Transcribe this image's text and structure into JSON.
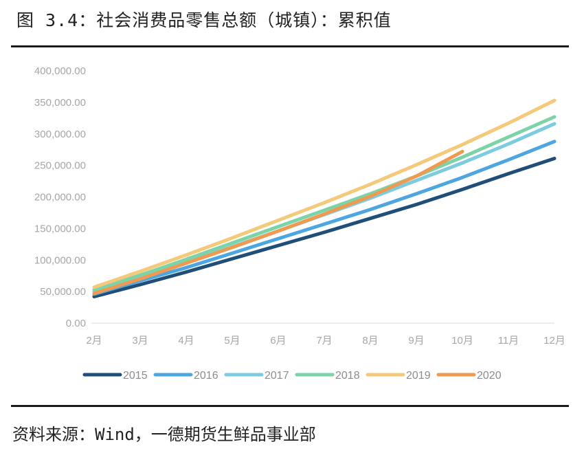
{
  "header": {
    "title": "图 3.4：社会消费品零售总额（城镇）：累积值"
  },
  "footer": {
    "source": "资料来源：Wind，一德期货生鲜品事业部"
  },
  "chart_data": {
    "type": "line",
    "title": "",
    "xlabel": "",
    "ylabel": "",
    "categories": [
      "2月",
      "3月",
      "4月",
      "5月",
      "6月",
      "7月",
      "8月",
      "9月",
      "10月",
      "11月",
      "12月"
    ],
    "ylim": [
      0,
      400000
    ],
    "y_ticks": [
      "0.00",
      "50,000.00",
      "100,000.00",
      "150,000.00",
      "200,000.00",
      "250,000.00",
      "300,000.00",
      "350,000.00",
      "400,000.00"
    ],
    "legend_position": "bottom",
    "grid": false,
    "series": [
      {
        "name": "2015",
        "color": "#1f4e79",
        "values": [
          42000,
          61000,
          81000,
          102000,
          123000,
          144000,
          166000,
          188000,
          212000,
          237000,
          261000
        ]
      },
      {
        "name": "2016",
        "color": "#4da6e0",
        "values": [
          46000,
          67000,
          88000,
          111000,
          134000,
          157000,
          180000,
          205000,
          231000,
          259000,
          288000
        ]
      },
      {
        "name": "2017",
        "color": "#7dcbe0",
        "values": [
          50000,
          72000,
          96000,
          121000,
          146000,
          172000,
          198000,
          226000,
          254000,
          284000,
          316000
        ]
      },
      {
        "name": "2018",
        "color": "#7dd3a8",
        "values": [
          53000,
          76000,
          101000,
          127000,
          153000,
          179000,
          205000,
          233000,
          263000,
          295000,
          327000
        ]
      },
      {
        "name": "2019",
        "color": "#f5c97a",
        "values": [
          57000,
          82000,
          108000,
          135000,
          163000,
          191000,
          220000,
          251000,
          283000,
          317000,
          353000
        ]
      },
      {
        "name": "2020",
        "color": "#ee9a50",
        "values": [
          47000,
          70000,
          95000,
          120000,
          146000,
          173000,
          201000,
          233000,
          272000,
          null,
          null
        ]
      }
    ]
  }
}
